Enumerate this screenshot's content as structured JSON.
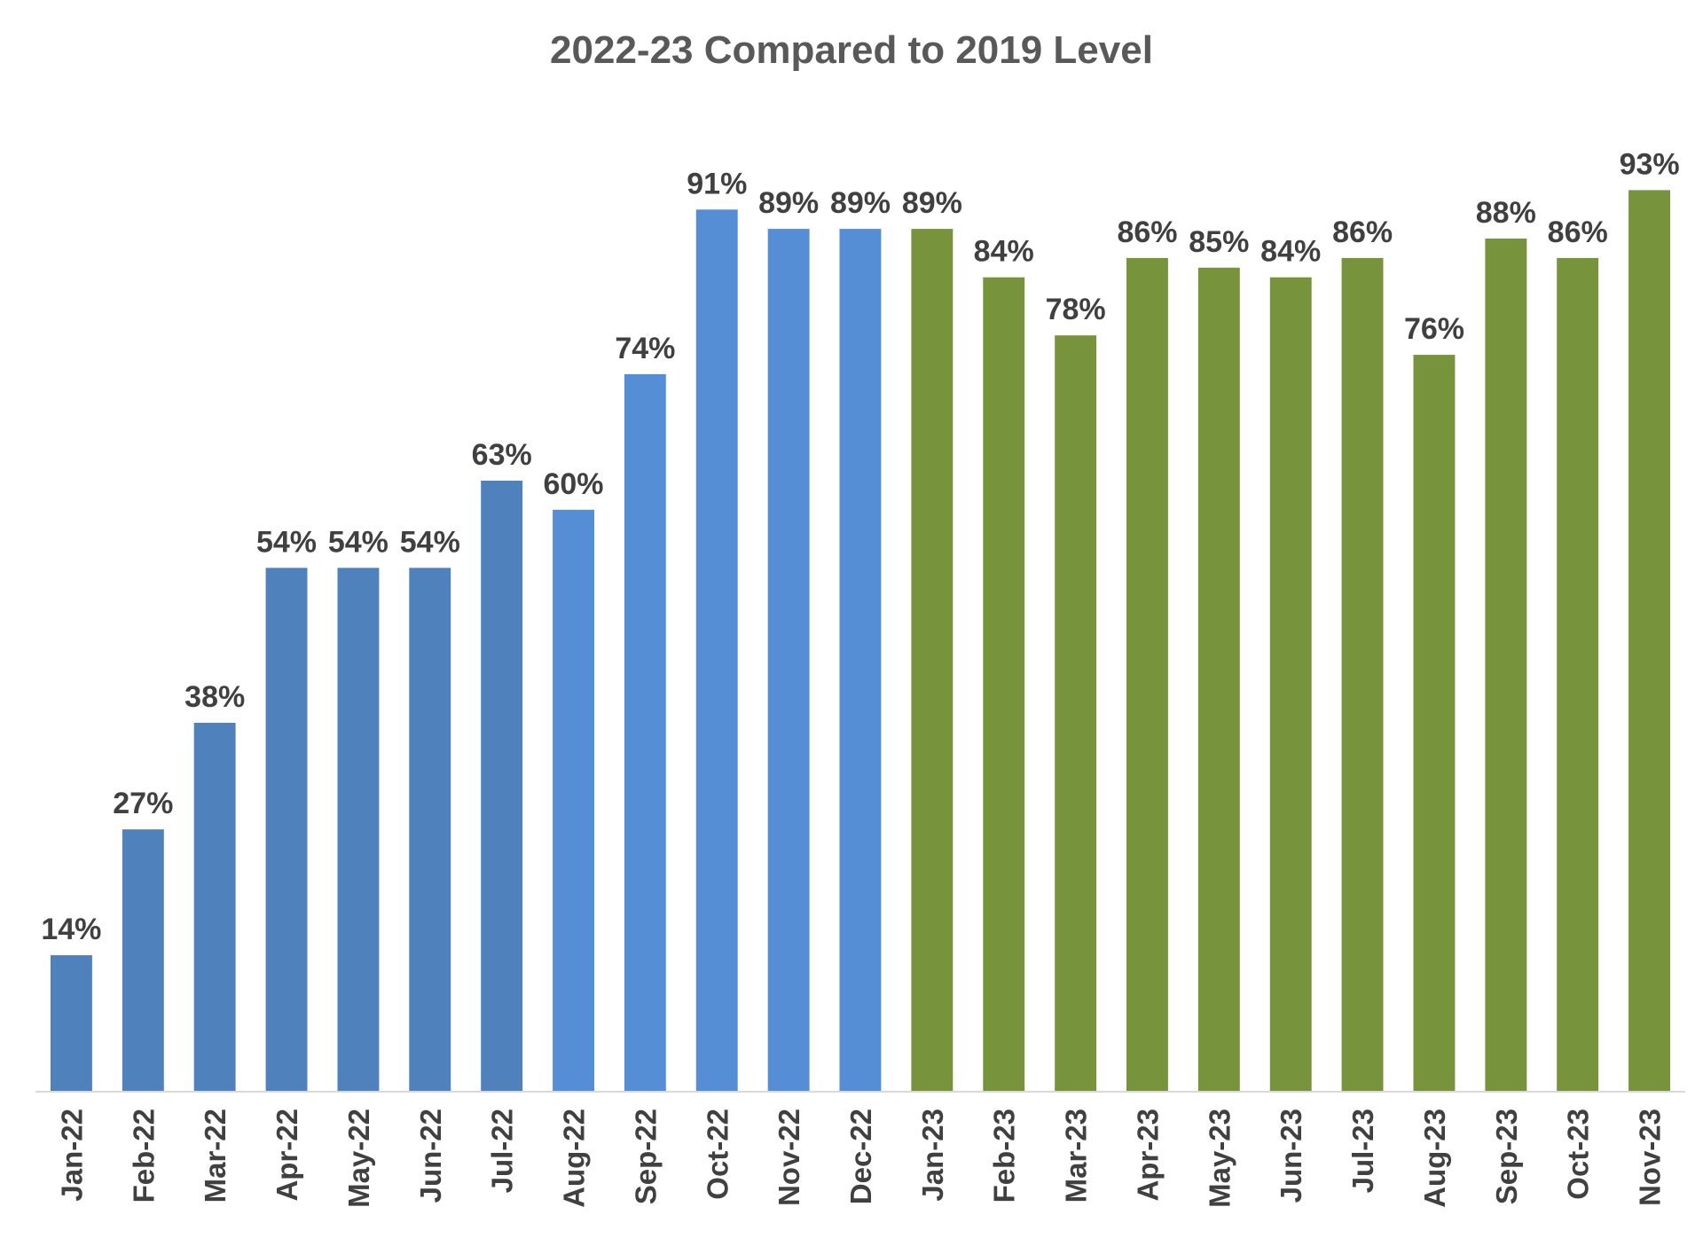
{
  "chart_data": {
    "type": "bar",
    "title": "2022-23 Compared to 2019 Level",
    "xlabel": "",
    "ylabel": "",
    "ylim": [
      0,
      100
    ],
    "grid": false,
    "legend": "none",
    "categories": [
      "Jan-22",
      "Feb-22",
      "Mar-22",
      "Apr-22",
      "May-22",
      "Jun-22",
      "Jul-22",
      "Aug-22",
      "Sep-22",
      "Oct-22",
      "Nov-22",
      "Dec-22",
      "Jan-23",
      "Feb-23",
      "Mar-23",
      "Apr-23",
      "May-23",
      "Jun-23",
      "Jul-23",
      "Aug-23",
      "Sep-23",
      "Oct-23",
      "Nov-23"
    ],
    "values": [
      14,
      27,
      38,
      54,
      54,
      54,
      63,
      60,
      74,
      91,
      89,
      89,
      89,
      84,
      78,
      86,
      85,
      84,
      86,
      76,
      88,
      86,
      93
    ],
    "value_labels": [
      "14%",
      "27%",
      "38%",
      "54%",
      "54%",
      "54%",
      "63%",
      "60%",
      "74%",
      "91%",
      "89%",
      "89%",
      "89%",
      "84%",
      "78%",
      "86%",
      "85%",
      "84%",
      "86%",
      "76%",
      "88%",
      "86%",
      "93%"
    ],
    "bar_colors": [
      "#4f81bd",
      "#4f81bd",
      "#4f81bd",
      "#4f81bd",
      "#4f81bd",
      "#4f81bd",
      "#4f81bd",
      "#558ed5",
      "#558ed5",
      "#558ed5",
      "#558ed5",
      "#558ed5",
      "#77933c",
      "#77933c",
      "#77933c",
      "#77933c",
      "#77933c",
      "#77933c",
      "#77933c",
      "#77933c",
      "#77933c",
      "#77933c",
      "#77933c"
    ],
    "label_color": "#404040",
    "tick_color": "#404040",
    "axis_color": "#d9d9d9"
  }
}
